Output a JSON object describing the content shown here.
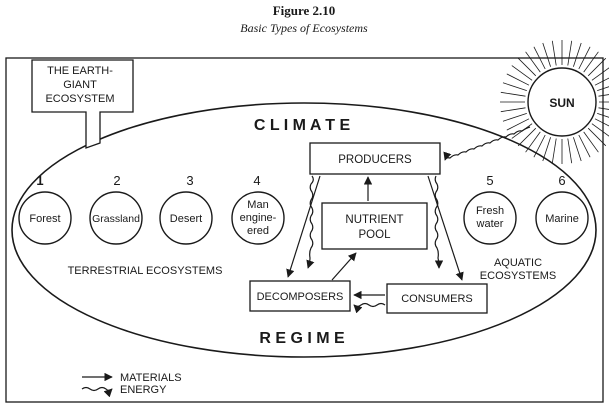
{
  "figure": {
    "number": "Figure 2.10",
    "subtitle": "Basic Types of Ecosystems"
  },
  "earth_box": {
    "line1": "THE EARTH-",
    "line2": "GIANT",
    "line3": "ECOSYSTEM"
  },
  "sun": {
    "label": "SUN"
  },
  "climate": "C L I M A T E",
  "regime": "R E G I M E",
  "ecosystems": [
    {
      "number": "1",
      "lines": [
        "Forest"
      ]
    },
    {
      "number": "2",
      "lines": [
        "Grassland"
      ]
    },
    {
      "number": "3",
      "lines": [
        "Desert"
      ]
    },
    {
      "number": "4",
      "lines": [
        "Man",
        "engine-",
        "ered"
      ]
    },
    {
      "number": "5",
      "lines": [
        "Fresh",
        "water"
      ]
    },
    {
      "number": "6",
      "lines": [
        "Marine"
      ]
    }
  ],
  "groups": {
    "terrestrial": "TERRESTRIAL ECOSYSTEMS",
    "aquatic_line1": "AQUATIC",
    "aquatic_line2": "ECOSYSTEMS"
  },
  "boxes": {
    "producers": "PRODUCERS",
    "nutrient_line1": "NUTRIENT",
    "nutrient_line2": "POOL",
    "decomposers": "DECOMPOSERS",
    "consumers": "CONSUMERS"
  },
  "legend": {
    "materials": "MATERIALS",
    "energy": "ENERGY"
  },
  "colors": {
    "ink": "#1a1a1a",
    "background": "#ffffff"
  }
}
